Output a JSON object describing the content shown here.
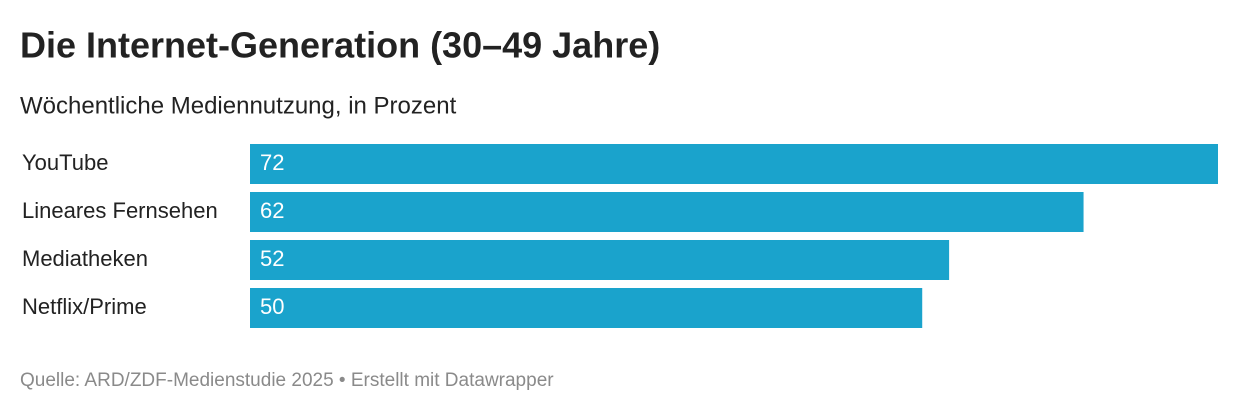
{
  "chart_data": {
    "type": "bar",
    "orientation": "horizontal",
    "title": "Die Internet-Generation (30–49 Jahre)",
    "subtitle": "Wöchentliche Mediennutzung, in Prozent",
    "categories": [
      "YouTube",
      "Lineares Fernsehen",
      "Mediatheken",
      "Netflix/Prime"
    ],
    "values": [
      72,
      62,
      52,
      50
    ],
    "color": "#1aa3cc",
    "xlim": [
      0,
      72
    ],
    "footer": "Quelle: ARD/ZDF-Medienstudie 2025 • Erstellt mit Datawrapper"
  }
}
